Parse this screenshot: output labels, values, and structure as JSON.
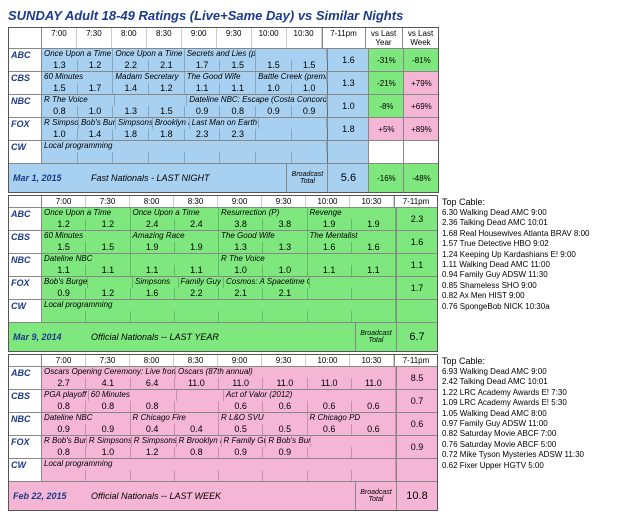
{
  "title": "SUNDAY Adult 18-49 Ratings (Live+Same Day) vs Similar Nights",
  "timeSlots": [
    "7:00",
    "7:30",
    "8:00",
    "8:30",
    "9:00",
    "9:30",
    "10:00",
    "10:30"
  ],
  "primeLabel": "7-11pm",
  "vsLabels": [
    "vs Last Year",
    "vs Last Week"
  ],
  "broadcastLabel": "Broadcast Total",
  "networks": [
    "ABC",
    "CBS",
    "NBC",
    "FOX",
    "CW"
  ],
  "colors": {
    "blue": "#a8d0f0",
    "green": "#7ee87e",
    "pink": "#f5b5d5"
  },
  "panels": [
    {
      "bg": "blue",
      "date": "Mar 1, 2015",
      "footerLabel": "Fast Nationals - LAST NIGHT",
      "broadcastTotal": "5.6",
      "footerVs": [
        "-16%",
        "-48%"
      ],
      "rows": [
        {
          "shows": [
            [
              "Once Upon a Time (clip s",
              2
            ],
            [
              "Once Upon a Time",
              2
            ],
            [
              "Secrets and Lies (premiere)",
              2
            ],
            [
              "",
              2
            ]
          ],
          "vals": [
            "1.3",
            "1.2",
            "2.2",
            "2.1",
            "1.7",
            "1.5",
            "1.5",
            "1.5"
          ],
          "prime": "1.6",
          "vs": [
            "-31%",
            "-81%"
          ]
        },
        {
          "shows": [
            [
              "60 Minutes",
              2
            ],
            [
              "Madam Secretary",
              2
            ],
            [
              "The Good Wife",
              2
            ],
            [
              "Battle Creek (premiere)",
              2
            ]
          ],
          "vals": [
            "1.5",
            "1.7",
            "1.4",
            "1.2",
            "1.1",
            "1.1",
            "1.0",
            "1.0"
          ],
          "prime": "1.3",
          "vs": [
            "-21%",
            "+79%"
          ]
        },
        {
          "shows": [
            [
              "R The Voice",
              2
            ],
            [
              "",
              2
            ],
            [
              "Dateline NBC: Escape (Costa Concordia",
              4
            ]
          ],
          "vals": [
            "0.8",
            "1.0",
            "1.3",
            "1.5",
            "0.9",
            "0.8",
            "0.9",
            "0.9"
          ],
          "prime": "1.0",
          "vs": [
            "-8%",
            "+69%"
          ]
        },
        {
          "shows": [
            [
              "R Simpsons",
              1
            ],
            [
              "Bob's Burge",
              1
            ],
            [
              "Simpsons",
              1
            ],
            [
              "Brooklyn Nin",
              1
            ],
            [
              "Last Man on Earth (prem",
              2
            ],
            [
              "",
              2
            ]
          ],
          "vals": [
            "1.0",
            "1.4",
            "1.8",
            "1.8",
            "2.3",
            "2.3",
            "",
            ""
          ],
          "prime": "1.8",
          "vs": [
            "+5%",
            "+89%"
          ]
        },
        {
          "shows": [
            [
              "Local programming",
              8
            ]
          ],
          "vals": [
            "",
            "",
            "",
            "",
            "",
            "",
            "",
            ""
          ],
          "prime": "",
          "vs": [
            "",
            ""
          ]
        }
      ]
    },
    {
      "bg": "green",
      "date": "Mar 9, 2014",
      "footerLabel": "Official Nationals -- LAST YEAR",
      "broadcastTotal": "6.7",
      "rows": [
        {
          "shows": [
            [
              "Once Upon a Time",
              2
            ],
            [
              "Once Upon a Time",
              2
            ],
            [
              "Resurrection (P)",
              2
            ],
            [
              "Revenge",
              2
            ]
          ],
          "vals": [
            "1.2",
            "1.2",
            "2.4",
            "2.4",
            "3.8",
            "3.8",
            "1.9",
            "1.9"
          ],
          "prime": "2.3"
        },
        {
          "shows": [
            [
              "60 Minutes",
              2
            ],
            [
              "Amazing Race",
              2
            ],
            [
              "The Good Wife",
              2
            ],
            [
              "The Mentalist",
              2
            ]
          ],
          "vals": [
            "1.5",
            "1.5",
            "1.9",
            "1.9",
            "1.3",
            "1.3",
            "1.6",
            "1.6"
          ],
          "prime": "1.6"
        },
        {
          "shows": [
            [
              "Dateline NBC",
              2
            ],
            [
              "",
              2
            ],
            [
              "R The Voice",
              2
            ],
            [
              "",
              2
            ]
          ],
          "vals": [
            "1.1",
            "1.1",
            "1.1",
            "1.1",
            "1.0",
            "1.0",
            "1.1",
            "1.1"
          ],
          "prime": "1.1"
        },
        {
          "shows": [
            [
              "Bob's Burge",
              1
            ],
            [
              "",
              1
            ],
            [
              "Simpsons",
              1
            ],
            [
              "Family Guy",
              1
            ],
            [
              "Cosmos: A Spacetime Od",
              2
            ],
            [
              "",
              2
            ]
          ],
          "vals": [
            "0.9",
            "1.2",
            "1.6",
            "2.2",
            "2.1",
            "2.1",
            "",
            ""
          ],
          "prime": "1.7"
        },
        {
          "shows": [
            [
              "Local programming",
              8
            ]
          ],
          "vals": [
            "",
            "",
            "",
            "",
            "",
            "",
            "",
            ""
          ],
          "prime": ""
        }
      ],
      "cable": {
        "head": "Top Cable:",
        "items": [
          "6.30 Walking Dead AMC 9:00",
          "2.36 Talking Dead AMC 10:01",
          "1.68 Real Housewives Atlanta BRAV 8:00",
          "1.57 True Detective HBO 9:02",
          "1.24 Keeping Up Kardashians E! 9:00",
          "1.11 Walking Dead AMC 11:00",
          "0.94 Family Guy ADSW 11:30",
          "0.85 Shameless SHO 9:00",
          "0.82 Ax Men HIST 9:00",
          "0.76 SpongeBob NICK 10:30a"
        ]
      }
    },
    {
      "bg": "pink",
      "date": "Feb 22, 2015",
      "footerLabel": "Official Nationals -- LAST WEEK",
      "broadcastTotal": "10.8",
      "rows": [
        {
          "shows": [
            [
              "Oscars Opening Ceremony: Live from",
              3
            ],
            [
              "Oscars (87th annual)",
              5
            ]
          ],
          "vals": [
            "2.7",
            "4.1",
            "6.4",
            "11.0",
            "11.0",
            "11.0",
            "11.0",
            "11.0"
          ],
          "prime": "8.5"
        },
        {
          "shows": [
            [
              "PGA playoff",
              1
            ],
            [
              "60 Minutes",
              2
            ],
            [
              "",
              1
            ],
            [
              "Act of Valor (2012)",
              4
            ]
          ],
          "vals": [
            "0.8",
            "0.8",
            "0.8",
            "",
            "0.6",
            "0.6",
            "0.6",
            "0.6"
          ],
          "prime": "0.7"
        },
        {
          "shows": [
            [
              "Dateline NBC",
              2
            ],
            [
              "R Chicago Fire",
              2
            ],
            [
              "R L&O SVU",
              2
            ],
            [
              "R Chicago PD",
              2
            ]
          ],
          "vals": [
            "0.9",
            "0.9",
            "0.4",
            "0.4",
            "0.5",
            "0.5",
            "0.6",
            "0.6"
          ],
          "prime": "0.6"
        },
        {
          "shows": [
            [
              "R Bob's Burg",
              1
            ],
            [
              "R Simpsons",
              1
            ],
            [
              "R Simpsons",
              1
            ],
            [
              "R Brooklyn N",
              1
            ],
            [
              "R Family Gu",
              1
            ],
            [
              "R Bob's Burg",
              1
            ],
            [
              "",
              2
            ]
          ],
          "vals": [
            "0.8",
            "1.0",
            "1.2",
            "0.8",
            "0.9",
            "0.9",
            "",
            ""
          ],
          "prime": "0.9"
        },
        {
          "shows": [
            [
              "Local programming",
              8
            ]
          ],
          "vals": [
            "",
            "",
            "",
            "",
            "",
            "",
            "",
            ""
          ],
          "prime": ""
        }
      ],
      "cable": {
        "head": "Top Cable:",
        "items": [
          "6.93 Walking Dead AMC 9:00",
          "2.42 Talking Dead AMC 10:01",
          "1.22 LRC Academy Awards E! 7:30",
          "1.09 LRC Academy Awards E! 5:30",
          "1.05 Walking Dead AMC 8:00",
          "0.97 Family Guy ADSW 11:00",
          "0.82 Saturday Movie ABCF 7:00",
          "0.76 Saturday Movie ABCF 5:00",
          "0.72 Mike Tyson Mysteries ADSW 11:30",
          "0.62 Fixer Upper HGTV 5:00"
        ]
      }
    }
  ]
}
